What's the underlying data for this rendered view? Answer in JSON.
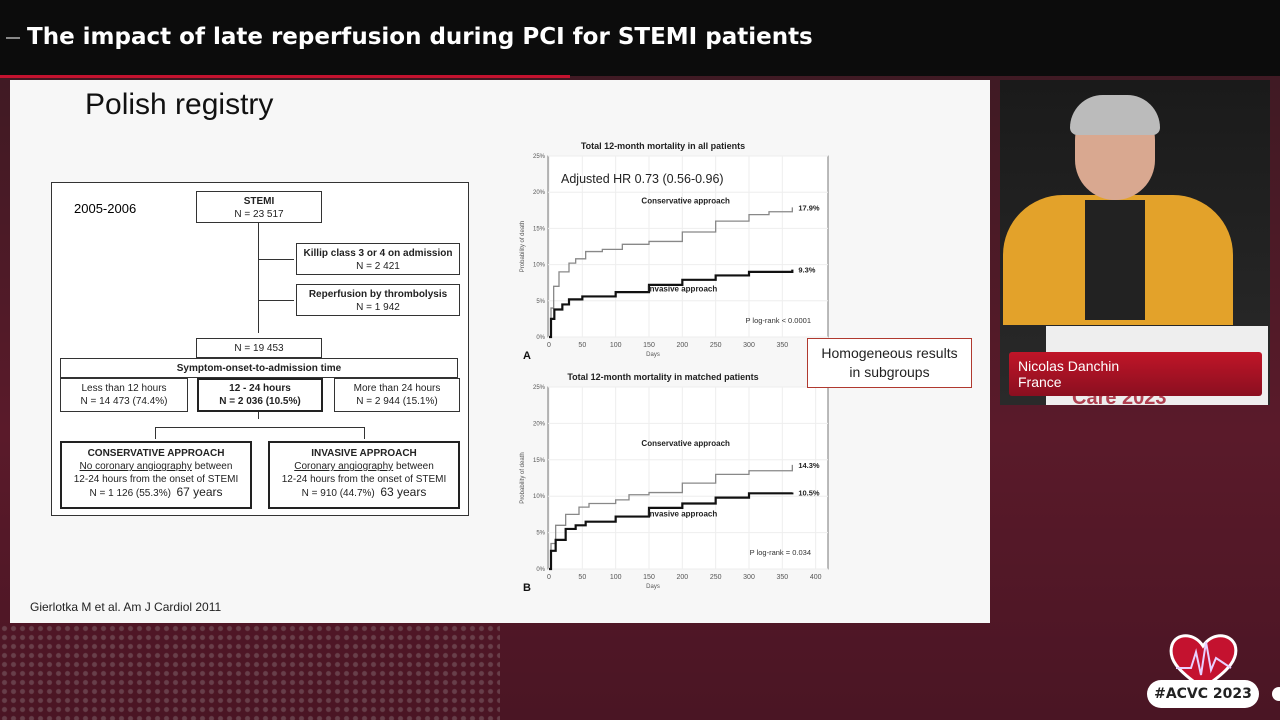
{
  "header": {
    "title": "The impact of late reperfusion during PCI for STEMI patients"
  },
  "slide": {
    "title": "Polish registry",
    "citation": "Gierlotka M et al. Am J Cardiol 2011",
    "callout": [
      "Homogeneous results",
      "in subgroups"
    ],
    "flowchart": {
      "period": "2005-2006",
      "stemi": {
        "title": "STEMI",
        "n": "N = 23 517"
      },
      "killip": {
        "title": "Killip class 3 or 4 on admission",
        "n": "N = 2 421"
      },
      "thrombolysis": {
        "title": "Reperfusion by thrombolysis",
        "n": "N = 1 942"
      },
      "remaining": "N = 19 453",
      "time_header": "Symptom-onset-to-admission time",
      "lt12": {
        "title": "Less than 12 hours",
        "n": "N = 14 473 (74.4%)"
      },
      "h12_24": {
        "title": "12 - 24 hours",
        "n": "N = 2 036 (10.5%)"
      },
      "gt24": {
        "title": "More than 24 hours",
        "n": "N = 2 944 (15.1%)"
      },
      "conservative": {
        "title": "CONSERVATIVE APPROACH",
        "underlined": "No coronary angiography",
        "line1_rest": " between",
        "line2": "12-24 hours from the onset of STEMI",
        "n": "N = 1 126 (55.3%)",
        "age": "67 years"
      },
      "invasive": {
        "title": "INVASIVE APPROACH",
        "underlined": "Coronary angiography",
        "line1_rest": " between",
        "line2": "12-24 hours from the onset of STEMI",
        "n": "N = 910 (44.7%)",
        "age": "63 years"
      }
    }
  },
  "chart_data": [
    {
      "type": "line",
      "panel": "A",
      "title": "Total 12-month mortality in all patients",
      "xlabel": "Days",
      "ylabel": "Probability of death",
      "annotation": "Adjusted HR 0.73 (0.56-0.96)",
      "pvalue": "P log-rank < 0.0001",
      "xticks": [
        "0",
        "50",
        "100",
        "150",
        "200",
        "250",
        "300",
        "350"
      ],
      "yticks": [
        "0%",
        "5%",
        "10%",
        "15%",
        "20%",
        "25%"
      ],
      "xlim": [
        0,
        420
      ],
      "ylim": [
        0,
        25
      ],
      "grid": true,
      "series": [
        {
          "name": "Conservative approach",
          "end_label": "17.9%",
          "color": "#888888",
          "points": [
            [
              0,
              0
            ],
            [
              3,
              4
            ],
            [
              7,
              7
            ],
            [
              15,
              9
            ],
            [
              30,
              10.2
            ],
            [
              40,
              10.8
            ],
            [
              55,
              11.8
            ],
            [
              80,
              12.1
            ],
            [
              110,
              12.8
            ],
            [
              150,
              13.2
            ],
            [
              200,
              14.5
            ],
            [
              250,
              16
            ],
            [
              300,
              16.9
            ],
            [
              330,
              17.3
            ],
            [
              365,
              17.9
            ]
          ]
        },
        {
          "name": "Invasive approach",
          "end_label": "9.3%",
          "color": "#111111",
          "points": [
            [
              0,
              0
            ],
            [
              3,
              2.5
            ],
            [
              8,
              3.8
            ],
            [
              20,
              4.5
            ],
            [
              30,
              5.2
            ],
            [
              50,
              5.6
            ],
            [
              100,
              6.2
            ],
            [
              150,
              7.2
            ],
            [
              200,
              7.9
            ],
            [
              250,
              8.5
            ],
            [
              300,
              9
            ],
            [
              365,
              9.3
            ]
          ]
        }
      ]
    },
    {
      "type": "line",
      "panel": "B",
      "title": "Total 12-month mortality in matched patients",
      "xlabel": "Days",
      "ylabel": "Probability of death",
      "pvalue": "P log-rank = 0.034",
      "xticks": [
        "0",
        "50",
        "100",
        "150",
        "200",
        "250",
        "300",
        "350",
        "400"
      ],
      "yticks": [
        "0%",
        "5%",
        "10%",
        "15%",
        "20%",
        "25%"
      ],
      "xlim": [
        0,
        420
      ],
      "ylim": [
        0,
        25
      ],
      "grid": true,
      "series": [
        {
          "name": "Conservative approach",
          "end_label": "14.3%",
          "color": "#888888",
          "points": [
            [
              0,
              0
            ],
            [
              3,
              3.5
            ],
            [
              10,
              6
            ],
            [
              25,
              7.5
            ],
            [
              45,
              8.5
            ],
            [
              60,
              9
            ],
            [
              100,
              9.5
            ],
            [
              120,
              10.2
            ],
            [
              150,
              10.5
            ],
            [
              200,
              11.8
            ],
            [
              250,
              13
            ],
            [
              300,
              13.5
            ],
            [
              365,
              14.3
            ]
          ]
        },
        {
          "name": "Invasive approach",
          "end_label": "10.5%",
          "color": "#111111",
          "points": [
            [
              0,
              0
            ],
            [
              3,
              2.5
            ],
            [
              10,
              4
            ],
            [
              25,
              5.5
            ],
            [
              40,
              6
            ],
            [
              55,
              6.5
            ],
            [
              100,
              7.2
            ],
            [
              150,
              8.4
            ],
            [
              200,
              9
            ],
            [
              250,
              9.8
            ],
            [
              300,
              10.4
            ],
            [
              365,
              10.5
            ]
          ]
        }
      ]
    }
  ],
  "speaker": {
    "name": "Nicolas Danchin",
    "country": "France",
    "podium_text": "Care 2023"
  },
  "branding": {
    "hashtag": "#ACVC 2023",
    "accent": "#c4122f"
  }
}
